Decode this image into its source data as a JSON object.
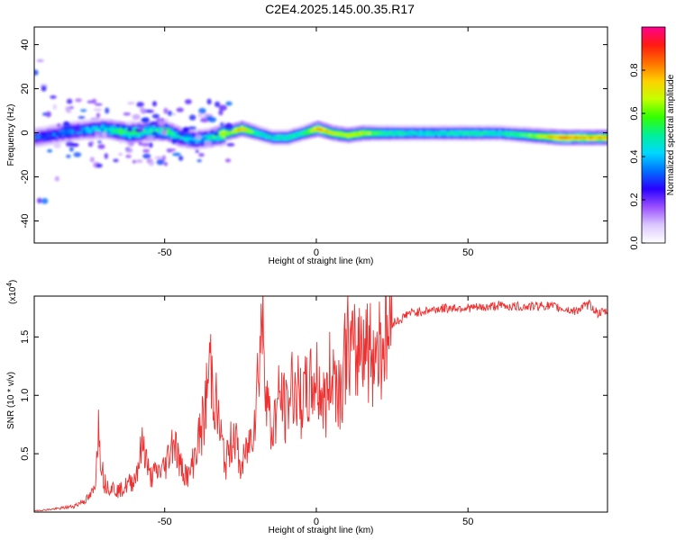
{
  "title": "C2E4.2025.145.00.35.R17",
  "chart_data": [
    {
      "type": "heatmap",
      "xlabel": "Height of straight line (km)",
      "ylabel": "Frequency (Hz)",
      "xlim": [
        -93,
        96
      ],
      "ylim": [
        -50,
        48
      ],
      "xticks": [
        -50,
        0,
        50
      ],
      "yticks": [
        -40,
        -20,
        0,
        20,
        40
      ],
      "colorbar": {
        "label": "Normalized spectral amplitude",
        "range": [
          0,
          1
        ],
        "ticks": [
          "0.0",
          "0.2",
          "0.4",
          "0.6",
          "0.8"
        ],
        "colors": [
          "#ffffff",
          "#dcc8ff",
          "#9a50ff",
          "#2a00ff",
          "#0070ff",
          "#00d8ff",
          "#00f098",
          "#34ff00",
          "#c4ff00",
          "#ffd000",
          "#ff7000",
          "#ff1a10",
          "#ff0090"
        ]
      },
      "ridge": {
        "description_x": [
          -93,
          -80,
          -70,
          -62,
          -55,
          -50,
          -45,
          -40,
          -35,
          -30,
          -25,
          -20,
          -15,
          -10,
          -5,
          0,
          5,
          10,
          15,
          20,
          30,
          40,
          50,
          60,
          70,
          80,
          90,
          96
        ],
        "freq": [
          -2,
          1,
          2,
          0,
          1,
          1,
          -2,
          -3,
          -2,
          0,
          2,
          0,
          -2,
          -2,
          0,
          2,
          0,
          -1,
          0,
          0,
          0,
          0,
          0,
          0,
          -1,
          -2,
          -2,
          -2
        ],
        "amplitude": [
          0.3,
          0.35,
          0.45,
          0.6,
          0.5,
          0.55,
          0.45,
          0.4,
          0.45,
          0.75,
          0.9,
          0.6,
          0.55,
          0.6,
          0.6,
          0.95,
          0.8,
          0.8,
          0.8,
          0.65,
          0.55,
          0.55,
          0.6,
          0.55,
          0.7,
          0.95,
          0.9,
          0.9
        ]
      }
    },
    {
      "type": "line",
      "xlabel": "Height of straight line (km)",
      "ylabel": "SNR (10 * v/v)",
      "multiplier_label": "(x10",
      "multiplier_exp": "4",
      "xlim": [
        -93,
        96
      ],
      "ylim": [
        0,
        1.85
      ],
      "xticks": [
        -50,
        0,
        50
      ],
      "yticks": [
        "0.5",
        "1.0",
        "1.5"
      ],
      "series": [
        {
          "color": "#ee3030",
          "x": [
            -93,
            -85,
            -80,
            -75,
            -73,
            -72,
            -70,
            -65,
            -60,
            -57,
            -55,
            -50,
            -47,
            -45,
            -42,
            -40,
            -37,
            -35,
            -33,
            -30,
            -27,
            -25,
            -22,
            -20,
            -18,
            -15,
            -12,
            -10,
            -8,
            -5,
            -2,
            0,
            3,
            5,
            8,
            10,
            13,
            15,
            18,
            20,
            23,
            25,
            28,
            30,
            35,
            40,
            45,
            50,
            55,
            60,
            65,
            70,
            75,
            80,
            85,
            90,
            93,
            96
          ],
          "values": [
            0.01,
            0.03,
            0.05,
            0.12,
            0.2,
            0.75,
            0.25,
            0.18,
            0.28,
            0.6,
            0.3,
            0.38,
            0.65,
            0.4,
            0.3,
            0.5,
            0.8,
            1.3,
            0.9,
            0.4,
            0.7,
            0.35,
            0.6,
            0.9,
            1.68,
            0.65,
            1.0,
            0.85,
            1.1,
            0.95,
            1.05,
            1.15,
            0.9,
            1.25,
            1.05,
            1.45,
            1.3,
            1.55,
            1.35,
            1.42,
            1.5,
            1.62,
            1.65,
            1.7,
            1.72,
            1.74,
            1.75,
            1.75,
            1.75,
            1.77,
            1.76,
            1.76,
            1.77,
            1.75,
            1.72,
            1.78,
            1.7,
            1.72
          ]
        }
      ]
    }
  ]
}
